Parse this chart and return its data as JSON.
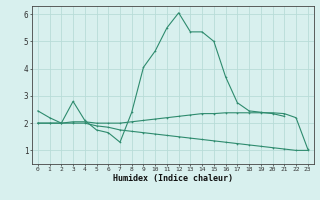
{
  "xlabel": "Humidex (Indice chaleur)",
  "x": [
    0,
    1,
    2,
    3,
    4,
    5,
    6,
    7,
    8,
    9,
    10,
    11,
    12,
    13,
    14,
    15,
    16,
    17,
    18,
    19,
    20,
    21,
    22,
    23
  ],
  "line1": [
    2.45,
    2.2,
    2.0,
    2.8,
    2.1,
    1.75,
    1.65,
    1.3,
    2.4,
    4.05,
    4.65,
    5.5,
    6.05,
    5.35,
    5.35,
    5.0,
    3.7,
    2.75,
    2.45,
    2.4,
    2.35,
    2.25,
    null,
    null
  ],
  "line2": [
    2.0,
    2.0,
    2.0,
    2.05,
    2.05,
    2.0,
    2.0,
    2.0,
    2.05,
    2.1,
    2.15,
    2.2,
    2.25,
    2.3,
    2.35,
    2.35,
    2.38,
    2.38,
    2.38,
    2.38,
    2.38,
    2.35,
    2.2,
    1.05
  ],
  "line3": [
    2.0,
    2.0,
    2.0,
    2.0,
    2.0,
    1.9,
    1.85,
    1.75,
    1.7,
    1.65,
    1.6,
    1.55,
    1.5,
    1.45,
    1.4,
    1.35,
    1.3,
    1.25,
    1.2,
    1.15,
    1.1,
    1.05,
    1.0,
    1.0
  ],
  "line_color": "#2e8b6e",
  "bg_color": "#d8f0ee",
  "grid_color": "#b8dcd8",
  "ylim": [
    0.5,
    6.3
  ],
  "xlim": [
    -0.5,
    23.5
  ],
  "yticks": [
    1,
    2,
    3,
    4,
    5,
    6
  ],
  "xticks": [
    0,
    1,
    2,
    3,
    4,
    5,
    6,
    7,
    8,
    9,
    10,
    11,
    12,
    13,
    14,
    15,
    16,
    17,
    18,
    19,
    20,
    21,
    22,
    23
  ]
}
